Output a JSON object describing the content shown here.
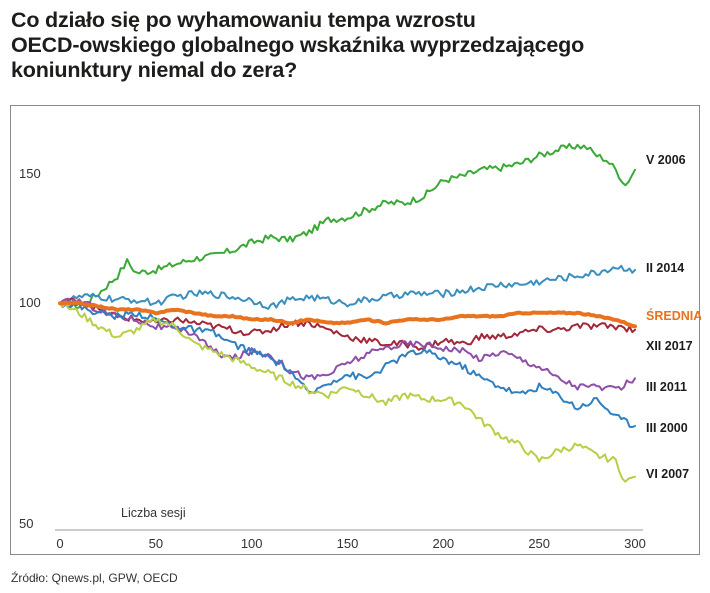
{
  "title": {
    "line1": "Co działo się po wyhamowaniu tempa wzrostu",
    "line2": "OECD-owskiego globalnego wskaźnika wyprzedzającego",
    "line3": "koniunktury niemal do zera?"
  },
  "source": "Źródło: Qnews.pl, GPW, OECD",
  "chart_data": {
    "type": "line",
    "title": "Co działo się po wyhamowaniu tempa wzrostu OECD-owskiego globalnego wskaźnika wyprzedzającego koniunktury niemal do zera?",
    "xlabel": "Liczba sesji",
    "ylabel": "",
    "xlim": [
      0,
      300
    ],
    "ylim": [
      50,
      165
    ],
    "y_scale": "log",
    "grid": false,
    "x_ticks": [
      0,
      50,
      100,
      150,
      200,
      250,
      300
    ],
    "y_ticks": [
      50,
      100,
      150
    ],
    "legend": "labels at right end of each line",
    "series": [
      {
        "name": "V 2006",
        "color": "#3aa935",
        "stroke_width": 2,
        "x": [
          0,
          10,
          20,
          30,
          35,
          40,
          50,
          60,
          70,
          80,
          90,
          100,
          110,
          120,
          130,
          140,
          150,
          160,
          170,
          180,
          190,
          200,
          210,
          220,
          230,
          240,
          250,
          260,
          270,
          275,
          280,
          285,
          290,
          295,
          300
        ],
        "y": [
          100,
          99,
          103,
          109,
          114,
          110,
          111,
          113,
          115,
          116,
          118,
          121,
          123,
          122,
          125,
          130,
          131,
          134,
          137,
          137,
          140,
          147,
          149,
          152,
          153,
          155,
          159,
          162,
          164,
          163,
          159,
          157,
          152,
          145,
          152
        ]
      },
      {
        "name": "II 2014",
        "color": "#3a8fbf",
        "stroke_width": 2,
        "x": [
          0,
          10,
          20,
          30,
          40,
          50,
          60,
          70,
          80,
          90,
          100,
          110,
          120,
          130,
          140,
          150,
          160,
          170,
          180,
          190,
          200,
          210,
          220,
          230,
          240,
          250,
          260,
          270,
          280,
          290,
          300
        ],
        "y": [
          100,
          102,
          102,
          101,
          101,
          100,
          102,
          103,
          103,
          102,
          101,
          99,
          101,
          102,
          101,
          100,
          101,
          102,
          103,
          103,
          103,
          104,
          105,
          106,
          106,
          107,
          108,
          109,
          110,
          112,
          111
        ]
      },
      {
        "name": "ŚREDNIA",
        "color": "#e8721e",
        "stroke_width": 4,
        "x": [
          0,
          10,
          20,
          30,
          40,
          50,
          60,
          70,
          80,
          90,
          100,
          110,
          120,
          130,
          140,
          150,
          160,
          170,
          180,
          190,
          200,
          210,
          220,
          230,
          240,
          250,
          260,
          270,
          280,
          290,
          300
        ],
        "y": [
          100,
          100,
          99,
          98,
          98,
          97,
          98,
          97,
          96,
          96,
          95,
          95,
          94,
          95,
          94,
          94,
          95,
          94,
          95,
          95,
          95,
          96,
          96,
          96,
          97,
          97,
          97,
          97,
          96,
          95,
          93
        ]
      },
      {
        "name": "XII 2017",
        "color": "#a0283a",
        "stroke_width": 2,
        "x": [
          0,
          10,
          20,
          30,
          40,
          50,
          60,
          70,
          80,
          90,
          100,
          110,
          120,
          130,
          140,
          150,
          160,
          170,
          180,
          190,
          200,
          210,
          220,
          230,
          240,
          250,
          260,
          270,
          280,
          290,
          300
        ],
        "y": [
          100,
          101,
          98,
          96,
          95,
          94,
          95,
          94,
          93,
          92,
          91,
          92,
          94,
          94,
          92,
          90,
          89,
          88,
          88,
          87,
          89,
          88,
          90,
          90,
          91,
          92,
          92,
          93,
          93,
          93,
          92
        ]
      },
      {
        "name": "III 2011",
        "color": "#8f4fa8",
        "stroke_width": 2,
        "x": [
          0,
          10,
          20,
          30,
          40,
          50,
          60,
          70,
          80,
          90,
          100,
          110,
          120,
          130,
          140,
          150,
          160,
          170,
          180,
          190,
          200,
          210,
          220,
          230,
          240,
          250,
          260,
          270,
          280,
          290,
          300
        ],
        "y": [
          100,
          101,
          98,
          96,
          95,
          93,
          92,
          91,
          86,
          84,
          86,
          85,
          81,
          79,
          80,
          83,
          85,
          87,
          88,
          88,
          87,
          86,
          84,
          86,
          84,
          82,
          79,
          77,
          77,
          76,
          79
        ]
      },
      {
        "name": "III 2000",
        "color": "#2f80c0",
        "stroke_width": 2,
        "x": [
          0,
          10,
          20,
          30,
          40,
          50,
          60,
          70,
          80,
          90,
          100,
          110,
          120,
          130,
          140,
          150,
          160,
          170,
          180,
          190,
          200,
          210,
          220,
          230,
          240,
          250,
          260,
          270,
          280,
          290,
          300
        ],
        "y": [
          100,
          99,
          97,
          96,
          97,
          95,
          93,
          92,
          91,
          88,
          86,
          84,
          81,
          75,
          78,
          80,
          79,
          82,
          85,
          86,
          84,
          82,
          79,
          77,
          75,
          77,
          75,
          72,
          74,
          70,
          68
        ]
      },
      {
        "name": "VI 2007",
        "color": "#b7cf46",
        "stroke_width": 2,
        "x": [
          0,
          10,
          20,
          30,
          40,
          50,
          60,
          70,
          80,
          90,
          100,
          110,
          120,
          130,
          140,
          150,
          160,
          170,
          180,
          190,
          200,
          210,
          220,
          230,
          240,
          250,
          260,
          270,
          280,
          290,
          295,
          300
        ],
        "y": [
          100,
          97,
          93,
          90,
          92,
          95,
          93,
          88,
          86,
          84,
          82,
          80,
          78,
          76,
          75,
          77,
          75,
          73,
          75,
          74,
          74,
          73,
          69,
          66,
          64,
          61,
          63,
          64,
          62,
          61,
          57,
          58
        ]
      }
    ],
    "annotations": [
      "Liczba sesji"
    ]
  }
}
